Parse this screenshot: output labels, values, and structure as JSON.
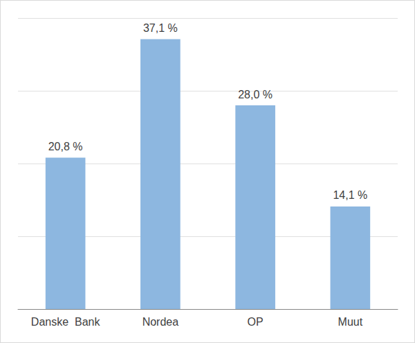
{
  "chart_data": {
    "type": "bar",
    "categories": [
      "Danske  Bank",
      "Nordea",
      "OP",
      "Muut"
    ],
    "values": [
      20.8,
      37.1,
      28.0,
      14.1
    ],
    "value_labels": [
      "20,8 %",
      "37,1 %",
      "28,0 %",
      "14,1 %"
    ],
    "data_labels": true,
    "color": "#8db7e0",
    "ylim": [
      0,
      40
    ],
    "yticks": [
      0,
      10,
      20,
      30,
      40
    ],
    "grid": true,
    "tick_labels": "x"
  }
}
